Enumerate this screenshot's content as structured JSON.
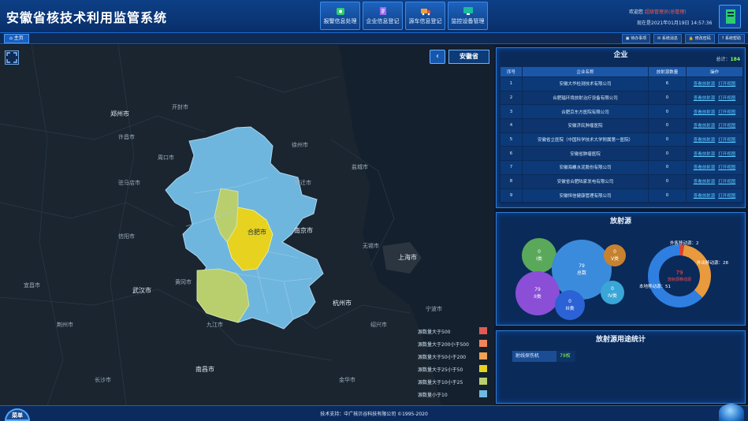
{
  "app": {
    "title": "安徽省核技术利用监管系统"
  },
  "modules": [
    {
      "label": "报警信息处理",
      "icon": "alarm-icon"
    },
    {
      "label": "企业信息登记",
      "icon": "document-edit-icon"
    },
    {
      "label": "源车信息登记",
      "icon": "truck-icon"
    },
    {
      "label": "监控设备管理",
      "icon": "monitor-icon"
    }
  ],
  "user": {
    "welcome": "欢迎您",
    "name": "超级管理员(总管理)",
    "date": "现在是2021年01月19日 14:57:36"
  },
  "toolbar": {
    "tab": "主页",
    "actions": [
      "待办事项",
      "系统消息",
      "修改密码",
      "系统帮助"
    ]
  },
  "map": {
    "province": "安徽省",
    "cities": [
      {
        "name": "郑州市",
        "big": true
      },
      {
        "name": "开封市",
        "big": false
      },
      {
        "name": "许昌市",
        "big": false
      },
      {
        "name": "周口市",
        "big": false
      },
      {
        "name": "驻马店市",
        "big": false
      },
      {
        "name": "信阳市",
        "big": false
      },
      {
        "name": "武汉市",
        "big": true
      },
      {
        "name": "长沙市",
        "big": false
      },
      {
        "name": "南昌市",
        "big": true
      },
      {
        "name": "九江市",
        "big": false
      },
      {
        "name": "南京市",
        "big": true
      },
      {
        "name": "上海市",
        "big": true
      },
      {
        "name": "杭州市",
        "big": true
      },
      {
        "name": "合肥市",
        "big": false
      },
      {
        "name": "徐州市",
        "big": false
      },
      {
        "name": "宿迁市",
        "big": false
      },
      {
        "name": "盐城市",
        "big": false
      },
      {
        "name": "无锡市",
        "big": false
      },
      {
        "name": "宁波市",
        "big": false
      },
      {
        "name": "绍兴市",
        "big": false
      },
      {
        "name": "黄冈市",
        "big": false
      },
      {
        "name": "宜昌市",
        "big": false
      },
      {
        "name": "荆州市",
        "big": false
      },
      {
        "name": "金华市",
        "big": false
      }
    ],
    "legend": [
      {
        "label": "源数量大于500",
        "color": "#e05a54"
      },
      {
        "label": "源数量大于200小于500",
        "color": "#f0845a"
      },
      {
        "label": "源数量大于50小于200",
        "color": "#f2a250"
      },
      {
        "label": "源数量大于25小于50",
        "color": "#e6d21f"
      },
      {
        "label": "源数量大于10小于25",
        "color": "#b9cf6e"
      },
      {
        "label": "源数量小于10",
        "color": "#6fb9e0"
      }
    ]
  },
  "enterprise": {
    "title": "企业",
    "total_label": "总计：",
    "total": "184",
    "columns": [
      "序号",
      "企业名称",
      "放射源数量",
      "操作"
    ],
    "rows": [
      {
        "no": "1",
        "name": "安徽大华检测技术有限公司",
        "count": "6"
      },
      {
        "no": "2",
        "name": "合肥辐环境放射治疗设备有限公司",
        "count": "0"
      },
      {
        "no": "3",
        "name": "合肥京东方医院有限公司",
        "count": "0"
      },
      {
        "no": "4",
        "name": "安徽济民肿瘤医院",
        "count": "0"
      },
      {
        "no": "5",
        "name": "安徽省立医院（中国科学技术大学附属第一医院）",
        "count": "0"
      },
      {
        "no": "6",
        "name": "安徽省肿瘤医院",
        "count": "0"
      },
      {
        "no": "7",
        "name": "安徽海螺水泥股份有限公司",
        "count": "0"
      },
      {
        "no": "8",
        "name": "安徽省合肥陆家发电有限公司",
        "count": "0"
      },
      {
        "no": "9",
        "name": "安徽恒信健康管理有限公司",
        "count": "0"
      }
    ],
    "op1": "查看放射源",
    "op2": "打开视图"
  },
  "radiation": {
    "title": "放射源",
    "bubbles": [
      {
        "value": "0",
        "label": "I类",
        "color": "#5aa95a"
      },
      {
        "value": "79",
        "label": "总数",
        "color": "#3b8bdc"
      },
      {
        "value": "0",
        "label": "V类",
        "color": "#c7822f"
      },
      {
        "value": "79",
        "label": "II类",
        "color": "#8a4fd6"
      },
      {
        "value": "0",
        "label": "III类",
        "color": "#2b62d6"
      },
      {
        "value": "0",
        "label": "IV类",
        "color": "#3aa6d8"
      }
    ],
    "donut": [
      {
        "label": "外售移动源：2",
        "value": 2,
        "color": "#d9423a"
      },
      {
        "label": "外出移动源：28",
        "value": 28,
        "color": "#e89a3c"
      },
      {
        "label": "本地移动源：51",
        "value": 51,
        "color": "#2f7fe0"
      }
    ],
    "donut_center": "79",
    "donut_center_label": "放射源移动源"
  },
  "usage": {
    "title": "放射源用途统计",
    "rows": [
      {
        "label": "射线探伤机",
        "value": "79枚"
      }
    ]
  },
  "footer": {
    "menu": "菜单",
    "text": "技术支持：中广核贝谷科技有限公司 ©1995-2020"
  }
}
